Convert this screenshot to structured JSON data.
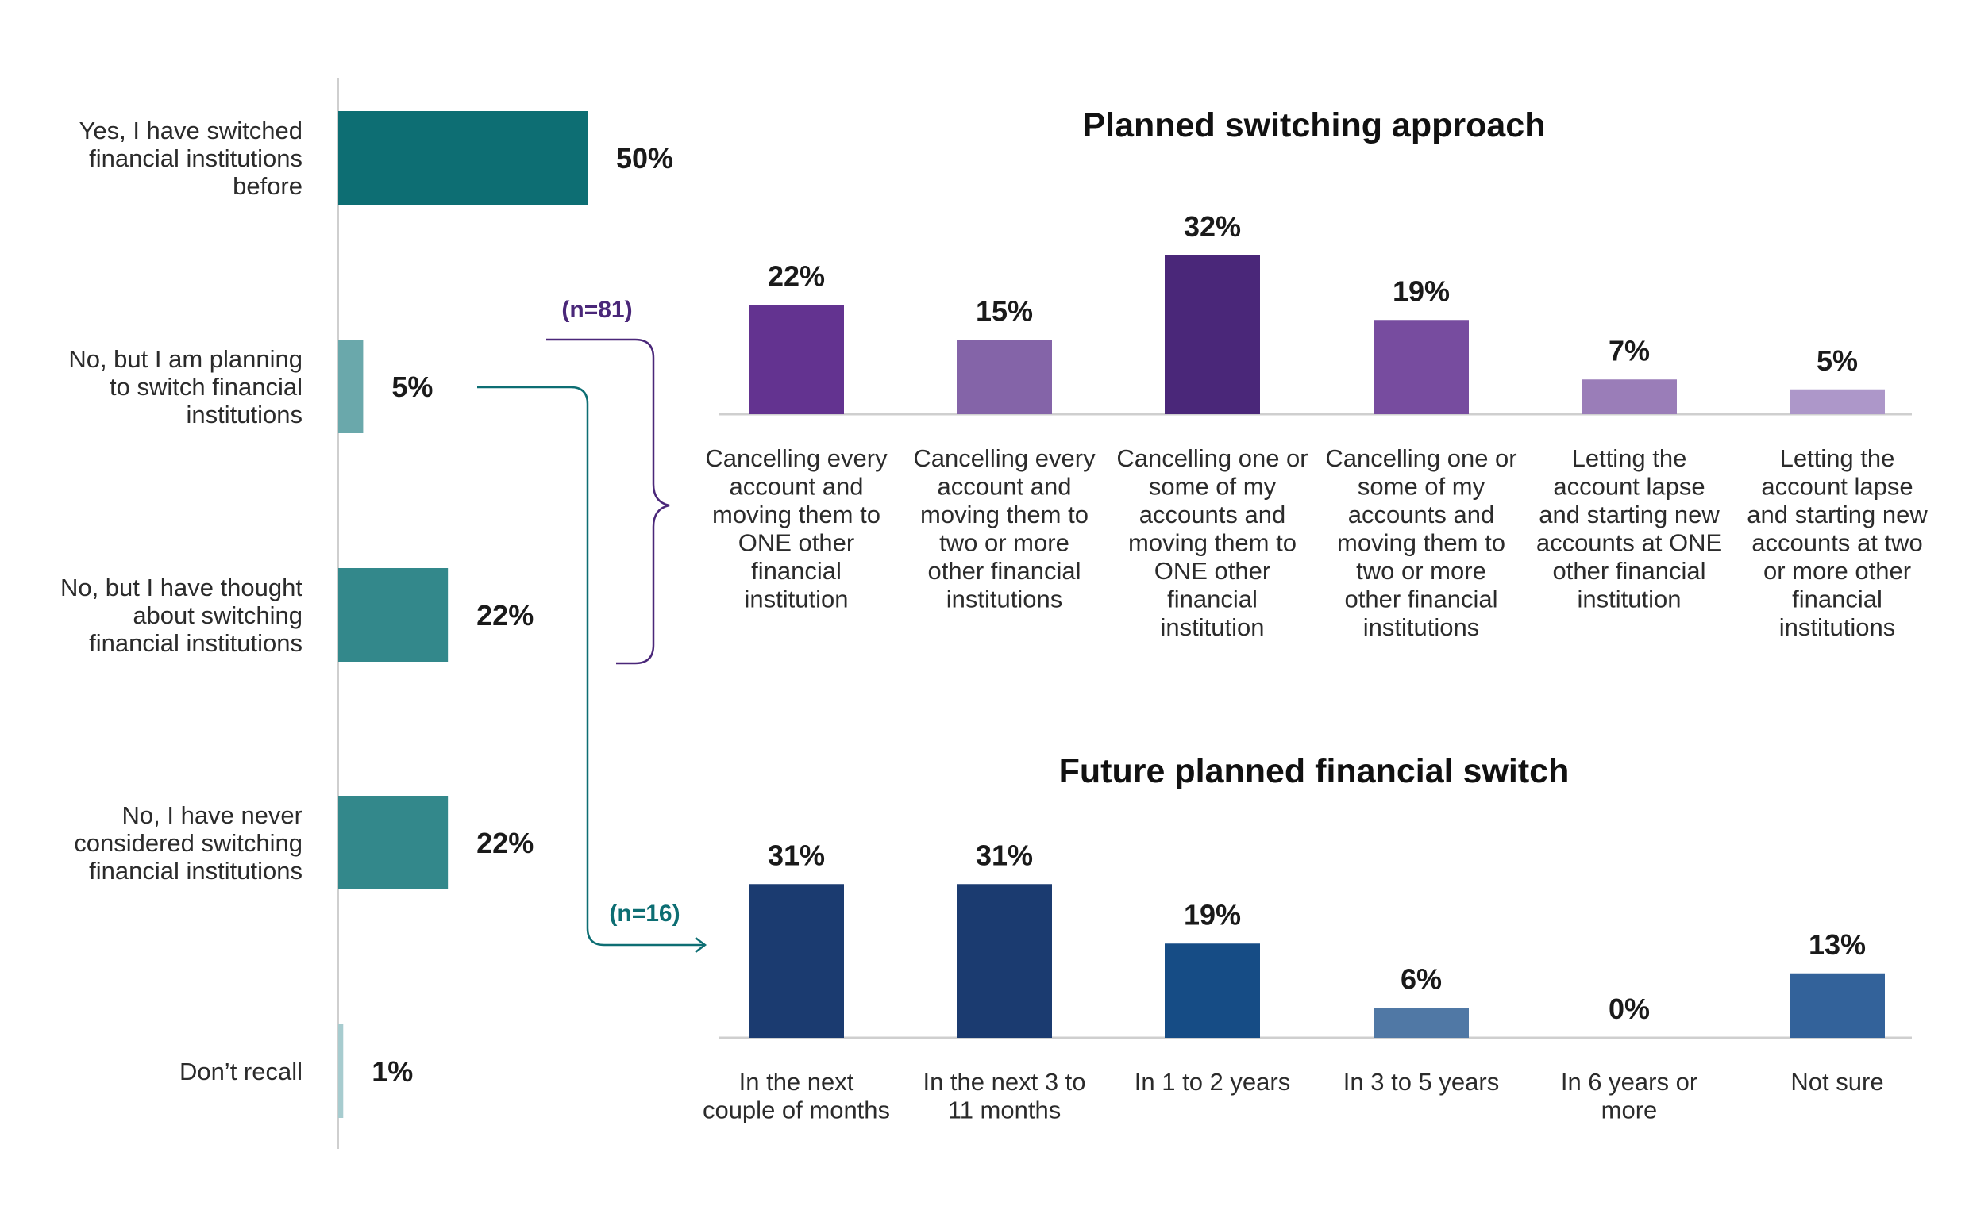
{
  "chart_data": [
    {
      "type": "bar",
      "orientation": "horizontal",
      "title": "",
      "categories": [
        [
          "Yes, I have switched",
          "financial institutions",
          "before"
        ],
        [
          "No, but I am planning",
          "to switch financial",
          "institutions"
        ],
        [
          "No, but I have thought",
          "about switching",
          "financial institutions"
        ],
        [
          "No, I have never",
          "considered switching",
          "financial institutions"
        ],
        [
          "Don’t recall"
        ]
      ],
      "values": [
        50,
        5,
        22,
        22,
        1
      ],
      "value_labels": [
        "50%",
        "5%",
        "22%",
        "22%",
        "1%"
      ],
      "colors": [
        "#0d6e73",
        "#6aa8ab",
        "#33888b",
        "#33888b",
        "#a7cccf"
      ],
      "xlim": [
        0,
        100
      ],
      "grid": false,
      "legend": "none"
    },
    {
      "type": "bar",
      "title": "Planned switching approach",
      "sample_label": "(n=81)",
      "categories": [
        [
          "Cancelling every",
          "account and",
          "moving them to",
          "ONE other",
          "financial",
          "institution"
        ],
        [
          "Cancelling every",
          "account and",
          "moving them to",
          "two or more",
          "other financial",
          "institutions"
        ],
        [
          "Cancelling one or",
          "some of my",
          "accounts and",
          "moving them to",
          "ONE other",
          "financial",
          "institution"
        ],
        [
          "Cancelling one or",
          "some of my",
          "accounts and",
          "moving them to",
          "two or more",
          "other financial",
          "institutions"
        ],
        [
          "Letting the",
          "account lapse",
          "and starting new",
          "accounts at ONE",
          "other financial",
          "institution"
        ],
        [
          "Letting the",
          "account lapse",
          "and starting new",
          "accounts at two",
          "or more other",
          "financial",
          "institutions"
        ]
      ],
      "values": [
        22,
        15,
        32,
        19,
        7,
        5
      ],
      "value_labels": [
        "22%",
        "15%",
        "32%",
        "19%",
        "7%",
        "5%"
      ],
      "colors": [
        "#633390",
        "#8464a8",
        "#4a2779",
        "#774c9f",
        "#9a7db8",
        "#ad97c9"
      ],
      "ylim": [
        0,
        35
      ],
      "grid": false,
      "legend": "none"
    },
    {
      "type": "bar",
      "title": "Future planned financial switch",
      "sample_label": "(n=16)",
      "categories": [
        [
          "In the next",
          "couple of months"
        ],
        [
          "In the next 3 to",
          "11 months"
        ],
        [
          "In 1 to 2 years"
        ],
        [
          "In 3 to 5 years"
        ],
        [
          "In 6 years or",
          "more"
        ],
        [
          "Not sure"
        ]
      ],
      "values": [
        31,
        31,
        19,
        6,
        0,
        13
      ],
      "value_labels": [
        "31%",
        "31%",
        "19%",
        "6%",
        "0%",
        "13%"
      ],
      "colors": [
        "#1b3b70",
        "#1b3b70",
        "#164c85",
        "#5078a5",
        "#5078a5",
        "#33629a"
      ],
      "ylim": [
        0,
        35
      ],
      "grid": false,
      "legend": "none"
    }
  ],
  "connector_colors": {
    "approach": "#4a2779",
    "future": "#0d6e73"
  }
}
